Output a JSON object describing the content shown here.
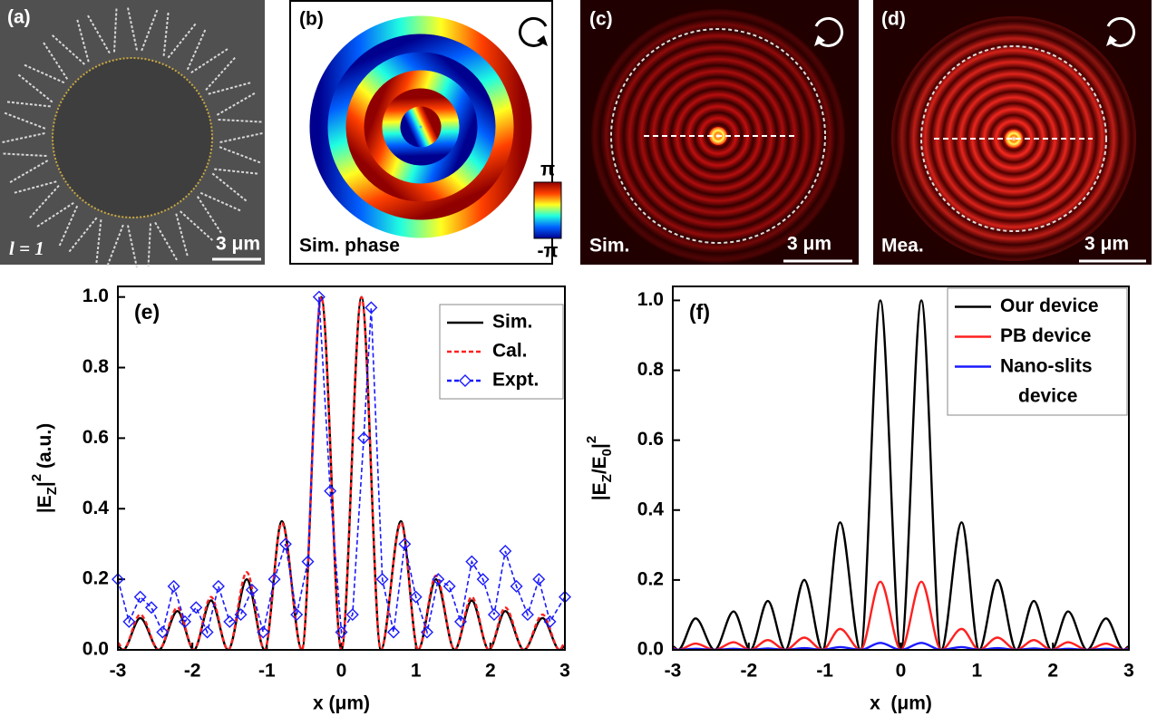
{
  "panels": [
    {
      "label": "(a)",
      "annotation": "l = 1",
      "scale": "3 μm"
    },
    {
      "label": "(b)",
      "annotation": "Sim. phase",
      "colorbar_max": "π",
      "colorbar_min": "-π"
    },
    {
      "label": "(c)",
      "annotation": "Sim.",
      "scale": "3 μm"
    },
    {
      "label": "(d)",
      "annotation": "Mea.",
      "scale": "3 μm"
    }
  ],
  "chart_data": [
    {
      "type": "line",
      "label": "(e)",
      "xlabel": "x (μm)",
      "ylabel": [
        {
          "text": "|E"
        },
        {
          "text": "Z",
          "shift": "sub"
        },
        {
          "text": "|"
        },
        {
          "text": "2",
          "shift": "super"
        },
        {
          "text": " (a.u.)"
        }
      ],
      "x": [
        -3,
        -2.93,
        -2.7,
        -2.45,
        -2.2,
        -1.98,
        -1.75,
        -1.52,
        -1.27,
        -1.03,
        -0.8,
        -0.53,
        -0.27,
        0,
        0.27,
        0.53,
        0.8,
        1.03,
        1.27,
        1.52,
        1.75,
        1.98,
        2.2,
        2.45,
        2.7,
        2.93,
        3
      ],
      "series": [
        {
          "name": "Sim.",
          "color": "#000000",
          "values": [
            0.01,
            0,
            0.09,
            0,
            0.11,
            0,
            0.14,
            0,
            0.2,
            0,
            0.365,
            0,
            1.0,
            0,
            1.0,
            0,
            0.365,
            0,
            0.2,
            0,
            0.14,
            0,
            0.11,
            0,
            0.09,
            0,
            0.01
          ]
        },
        {
          "name": "Cal.",
          "color": "#ff2020",
          "dash": true,
          "values": [
            0.02,
            0,
            0.1,
            0,
            0.12,
            0,
            0.15,
            0,
            0.22,
            0,
            0.36,
            0,
            1.0,
            0,
            1.0,
            0,
            0.36,
            0,
            0.21,
            0,
            0.15,
            0,
            0.12,
            0,
            0.1,
            0,
            0.02
          ]
        },
        {
          "name": "Expt.",
          "color": "#1a1aff",
          "dash": true,
          "marker": "diamond",
          "x": [
            -3,
            -2.85,
            -2.7,
            -2.55,
            -2.4,
            -2.25,
            -2.1,
            -1.95,
            -1.8,
            -1.65,
            -1.5,
            -1.35,
            -1.2,
            -1.05,
            -0.9,
            -0.75,
            -0.6,
            -0.45,
            -0.3,
            -0.15,
            0,
            0.15,
            0.3,
            0.4,
            0.55,
            0.7,
            0.85,
            1.0,
            1.15,
            1.3,
            1.45,
            1.6,
            1.75,
            1.9,
            2.05,
            2.2,
            2.35,
            2.5,
            2.65,
            2.8,
            3
          ],
          "values": [
            0.2,
            0.08,
            0.15,
            0.12,
            0.05,
            0.18,
            0.08,
            0.12,
            0.05,
            0.18,
            0.08,
            0.1,
            0.17,
            0.05,
            0.2,
            0.3,
            0.1,
            0.25,
            1.0,
            0.45,
            0.05,
            0.1,
            0.6,
            0.97,
            0.2,
            0.05,
            0.3,
            0.15,
            0.05,
            0.2,
            0.18,
            0.08,
            0.25,
            0.2,
            0.1,
            0.28,
            0.18,
            0.1,
            0.2,
            0.08,
            0.15
          ]
        }
      ],
      "xlim": [
        -3,
        3
      ],
      "xticks": [
        -3,
        -2,
        -1,
        0,
        1,
        2,
        3
      ],
      "ylim": [
        0,
        1.03
      ],
      "yticks": [
        {
          "value": 0,
          "label": "0.0"
        },
        0.2,
        0.4,
        0.6,
        0.8,
        {
          "value": 1,
          "label": "1.0"
        }
      ],
      "legend": "upper right"
    },
    {
      "type": "line",
      "label": "(f)",
      "xlabel": "x  (μm)",
      "ylabel": [
        {
          "text": "|E"
        },
        {
          "text": "Z",
          "shift": "sub"
        },
        {
          "text": "/E"
        },
        {
          "text": "0",
          "shift": "sub"
        },
        {
          "text": "|"
        },
        {
          "text": "2",
          "shift": "super"
        }
      ],
      "x": [
        -3,
        -2.93,
        -2.7,
        -2.45,
        -2.2,
        -1.98,
        -1.75,
        -1.52,
        -1.27,
        -1.03,
        -0.8,
        -0.53,
        -0.27,
        0,
        0.27,
        0.53,
        0.8,
        1.03,
        1.27,
        1.52,
        1.75,
        1.98,
        2.2,
        2.45,
        2.7,
        2.93,
        3
      ],
      "series": [
        {
          "name": "Our device",
          "color": "#000000",
          "values": [
            0.01,
            0,
            0.09,
            0,
            0.11,
            0,
            0.14,
            0,
            0.2,
            0,
            0.365,
            0,
            1.0,
            0,
            1.0,
            0,
            0.365,
            0,
            0.2,
            0,
            0.14,
            0,
            0.11,
            0,
            0.09,
            0,
            0.01
          ]
        },
        {
          "name": "PB device",
          "color": "#ff2020",
          "values": [
            0.005,
            0,
            0.018,
            0,
            0.022,
            0,
            0.028,
            0,
            0.035,
            0,
            0.06,
            0,
            0.195,
            0,
            0.195,
            0,
            0.06,
            0,
            0.035,
            0,
            0.028,
            0,
            0.022,
            0,
            0.018,
            0,
            0.005
          ]
        },
        {
          "name": "Nano-slits device",
          "color": "#1a1aff",
          "values": [
            0.002,
            0,
            0.003,
            0,
            0.003,
            0,
            0.004,
            0,
            0.005,
            0,
            0.008,
            0,
            0.02,
            0,
            0.02,
            0,
            0.008,
            0,
            0.005,
            0,
            0.004,
            0,
            0.003,
            0,
            0.003,
            0,
            0.002
          ]
        }
      ],
      "xlim": [
        -3,
        3
      ],
      "xticks": [
        -3,
        -2,
        -1,
        0,
        1,
        2,
        3
      ],
      "ylim": [
        0,
        1.04
      ],
      "yticks": [
        {
          "value": 0,
          "label": "0.0"
        },
        0.2,
        0.4,
        0.6,
        0.8,
        {
          "value": 1,
          "label": "1.0"
        }
      ],
      "legend": "upper right"
    }
  ]
}
